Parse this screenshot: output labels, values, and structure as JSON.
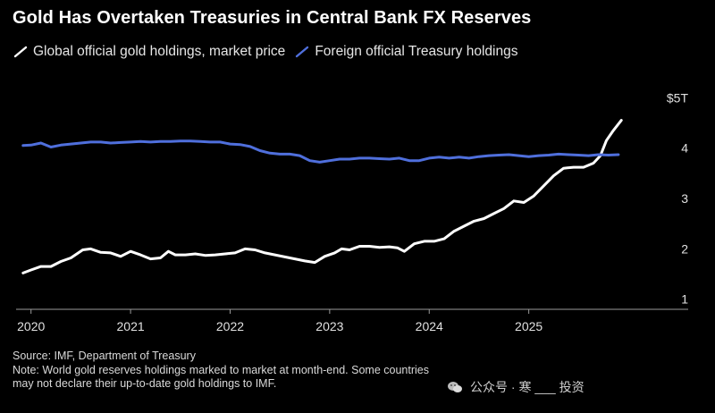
{
  "title": "Gold Has Overtaken Treasuries in Central Bank FX Reserves",
  "source": "Source: IMF, Department of Treasury",
  "note_line1": "Note: World gold reserves holdings marked to market at month-end. Some countries",
  "note_line2": "may not declare their up-to-date gold holdings to IMF.",
  "watermark_text": "公众号 · 寒 ___ 投资",
  "colors": {
    "background": "#000000",
    "gold_series": "#ffffff",
    "treasury_series": "#4f6fdc",
    "gridline": "#444444"
  },
  "chart_data": {
    "type": "line",
    "title": "Gold Has Overtaken Treasuries in Central Bank FX Reserves",
    "xlabel": "",
    "ylabel": "",
    "x_unit": "year",
    "xlim": [
      2019.85,
      2026.35
    ],
    "ylim": [
      0.8,
      5.2
    ],
    "x_ticks": [
      2020,
      2021,
      2022,
      2023,
      2024,
      2025
    ],
    "x_tick_labels": [
      "2020",
      "2021",
      "2022",
      "2023",
      "2024",
      "2025"
    ],
    "y_ticks": [
      1,
      2,
      3,
      4,
      5
    ],
    "y_tick_labels": [
      "1",
      "2",
      "3",
      "4",
      "$5T"
    ],
    "grid": false,
    "legend_position": "top-left",
    "series": [
      {
        "name": "Global official gold holdings, market price",
        "color": "#ffffff",
        "points": [
          [
            2019.92,
            1.52
          ],
          [
            2020.0,
            1.58
          ],
          [
            2020.1,
            1.65
          ],
          [
            2020.2,
            1.65
          ],
          [
            2020.3,
            1.75
          ],
          [
            2020.4,
            1.82
          ],
          [
            2020.52,
            1.98
          ],
          [
            2020.6,
            2.0
          ],
          [
            2020.7,
            1.93
          ],
          [
            2020.8,
            1.92
          ],
          [
            2020.9,
            1.85
          ],
          [
            2021.0,
            1.95
          ],
          [
            2021.1,
            1.88
          ],
          [
            2021.2,
            1.8
          ],
          [
            2021.3,
            1.82
          ],
          [
            2021.38,
            1.95
          ],
          [
            2021.45,
            1.88
          ],
          [
            2021.55,
            1.88
          ],
          [
            2021.65,
            1.9
          ],
          [
            2021.75,
            1.87
          ],
          [
            2021.85,
            1.88
          ],
          [
            2021.95,
            1.9
          ],
          [
            2022.05,
            1.92
          ],
          [
            2022.15,
            2.0
          ],
          [
            2022.25,
            1.98
          ],
          [
            2022.35,
            1.92
          ],
          [
            2022.45,
            1.88
          ],
          [
            2022.55,
            1.84
          ],
          [
            2022.65,
            1.8
          ],
          [
            2022.75,
            1.76
          ],
          [
            2022.85,
            1.73
          ],
          [
            2022.95,
            1.85
          ],
          [
            2023.05,
            1.92
          ],
          [
            2023.12,
            2.0
          ],
          [
            2023.2,
            1.98
          ],
          [
            2023.3,
            2.05
          ],
          [
            2023.4,
            2.05
          ],
          [
            2023.5,
            2.03
          ],
          [
            2023.6,
            2.04
          ],
          [
            2023.68,
            2.02
          ],
          [
            2023.75,
            1.95
          ],
          [
            2023.85,
            2.1
          ],
          [
            2023.95,
            2.15
          ],
          [
            2024.05,
            2.15
          ],
          [
            2024.15,
            2.2
          ],
          [
            2024.25,
            2.35
          ],
          [
            2024.35,
            2.45
          ],
          [
            2024.45,
            2.55
          ],
          [
            2024.55,
            2.6
          ],
          [
            2024.65,
            2.7
          ],
          [
            2024.75,
            2.8
          ],
          [
            2024.85,
            2.95
          ],
          [
            2024.95,
            2.92
          ],
          [
            2025.05,
            3.05
          ],
          [
            2025.15,
            3.25
          ],
          [
            2025.25,
            3.45
          ],
          [
            2025.35,
            3.6
          ],
          [
            2025.45,
            3.62
          ],
          [
            2025.55,
            3.62
          ],
          [
            2025.65,
            3.7
          ],
          [
            2025.72,
            3.85
          ],
          [
            2025.78,
            4.15
          ],
          [
            2025.85,
            4.35
          ],
          [
            2025.93,
            4.55
          ]
        ]
      },
      {
        "name": "Foreign official Treasury holdings",
        "color": "#4f6fdc",
        "points": [
          [
            2019.92,
            4.05
          ],
          [
            2020.0,
            4.06
          ],
          [
            2020.1,
            4.1
          ],
          [
            2020.2,
            4.02
          ],
          [
            2020.3,
            4.06
          ],
          [
            2020.4,
            4.08
          ],
          [
            2020.5,
            4.1
          ],
          [
            2020.6,
            4.12
          ],
          [
            2020.7,
            4.12
          ],
          [
            2020.8,
            4.1
          ],
          [
            2020.9,
            4.11
          ],
          [
            2021.0,
            4.12
          ],
          [
            2021.1,
            4.13
          ],
          [
            2021.2,
            4.12
          ],
          [
            2021.3,
            4.13
          ],
          [
            2021.4,
            4.13
          ],
          [
            2021.5,
            4.14
          ],
          [
            2021.6,
            4.14
          ],
          [
            2021.7,
            4.13
          ],
          [
            2021.8,
            4.12
          ],
          [
            2021.9,
            4.12
          ],
          [
            2022.0,
            4.08
          ],
          [
            2022.1,
            4.07
          ],
          [
            2022.2,
            4.03
          ],
          [
            2022.3,
            3.95
          ],
          [
            2022.4,
            3.9
          ],
          [
            2022.5,
            3.88
          ],
          [
            2022.6,
            3.88
          ],
          [
            2022.7,
            3.85
          ],
          [
            2022.8,
            3.75
          ],
          [
            2022.9,
            3.72
          ],
          [
            2023.0,
            3.75
          ],
          [
            2023.1,
            3.78
          ],
          [
            2023.2,
            3.78
          ],
          [
            2023.3,
            3.8
          ],
          [
            2023.4,
            3.8
          ],
          [
            2023.5,
            3.79
          ],
          [
            2023.6,
            3.78
          ],
          [
            2023.7,
            3.8
          ],
          [
            2023.8,
            3.75
          ],
          [
            2023.9,
            3.75
          ],
          [
            2024.0,
            3.8
          ],
          [
            2024.1,
            3.82
          ],
          [
            2024.2,
            3.8
          ],
          [
            2024.3,
            3.82
          ],
          [
            2024.4,
            3.8
          ],
          [
            2024.5,
            3.83
          ],
          [
            2024.6,
            3.85
          ],
          [
            2024.7,
            3.86
          ],
          [
            2024.8,
            3.87
          ],
          [
            2024.9,
            3.85
          ],
          [
            2025.0,
            3.83
          ],
          [
            2025.1,
            3.85
          ],
          [
            2025.2,
            3.86
          ],
          [
            2025.3,
            3.88
          ],
          [
            2025.4,
            3.87
          ],
          [
            2025.5,
            3.86
          ],
          [
            2025.6,
            3.85
          ],
          [
            2025.7,
            3.87
          ],
          [
            2025.8,
            3.86
          ],
          [
            2025.9,
            3.87
          ]
        ]
      }
    ]
  }
}
